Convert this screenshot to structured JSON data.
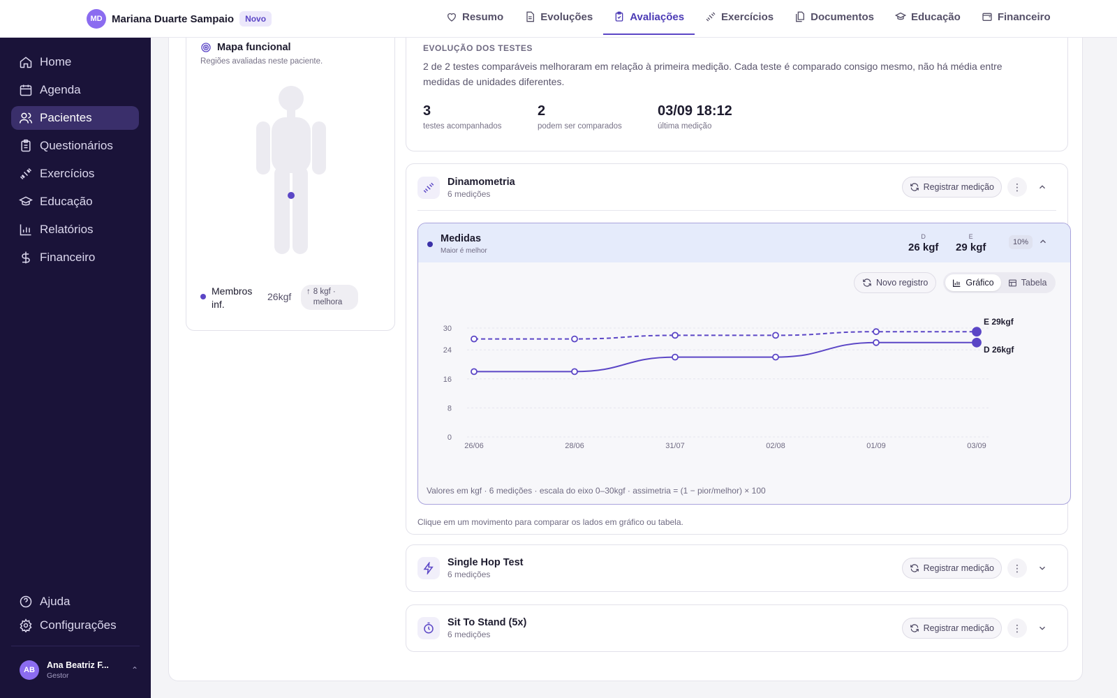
{
  "sidebar": {
    "items": [
      {
        "label": "Home",
        "icon": "home-icon"
      },
      {
        "label": "Agenda",
        "icon": "calendar-icon"
      },
      {
        "label": "Pacientes",
        "icon": "users-icon"
      },
      {
        "label": "Questionários",
        "icon": "clipboard-icon"
      },
      {
        "label": "Exercícios",
        "icon": "dumbbell-icon"
      },
      {
        "label": "Educação",
        "icon": "graduation-cap-icon"
      },
      {
        "label": "Relatórios",
        "icon": "bar-chart-icon"
      },
      {
        "label": "Financeiro",
        "icon": "dollar-icon"
      }
    ],
    "active": "Pacientes",
    "bottom": [
      {
        "label": "Ajuda",
        "icon": "help-circle-icon"
      },
      {
        "label": "Configurações",
        "icon": "gear-icon"
      }
    ],
    "user": {
      "initials": "AB",
      "name": "Ana Beatriz F...",
      "role": "Gestor"
    }
  },
  "header": {
    "patient_initials": "MD",
    "patient_name": "Mariana Duarte Sampaio",
    "badge": "Novo",
    "tabs": [
      {
        "label": "Resumo",
        "icon": "heart-icon"
      },
      {
        "label": "Evoluções",
        "icon": "file-text-icon"
      },
      {
        "label": "Avaliações",
        "icon": "clipboard-check-icon"
      },
      {
        "label": "Exercícios",
        "icon": "dumbbell-icon"
      },
      {
        "label": "Documentos",
        "icon": "files-icon"
      },
      {
        "label": "Educação",
        "icon": "graduation-cap-icon"
      },
      {
        "label": "Financeiro",
        "icon": "wallet-icon"
      }
    ],
    "active_tab": "Avaliações"
  },
  "map": {
    "title": "Mapa funcional",
    "subtitle": "Regiões avaliadas neste paciente.",
    "region": {
      "name": "Membros inf.",
      "value": "26kgf",
      "change": "8 kgf · melhora"
    }
  },
  "evolution": {
    "label": "EVOLUÇÃO DOS TESTES",
    "text": "2 de 2 testes comparáveis melhoraram em relação à primeira medição. Cada teste é comparado consigo mesmo, não há média entre medidas de unidades diferentes.",
    "stats": [
      {
        "value": "3",
        "label": "testes acompanhados"
      },
      {
        "value": "2",
        "label": "podem ser comparados"
      },
      {
        "value": "03/09 18:12",
        "label": "última medição"
      }
    ]
  },
  "tests": [
    {
      "name": "Dinamometria",
      "count": "6 medições",
      "icon": "dumbbell-icon"
    },
    {
      "name": "Single Hop Test",
      "count": "6 medições",
      "icon": "zap-icon"
    },
    {
      "name": "Sit To Stand (5x)",
      "count": "6 medições",
      "icon": "timer-icon"
    }
  ],
  "actions": {
    "register": "Registrar medição"
  },
  "medidas": {
    "name": "Medidas",
    "subtitle": "Maior é melhor",
    "right_key": "D",
    "right_value": "26 kgf",
    "left_key": "E",
    "left_value": "29 kgf",
    "asymmetry": "10%",
    "new_record": "Novo registro",
    "view_chart": "Gráfico",
    "view_table": "Tabela",
    "footer": "Valores em kgf · 6 medições · escala do eixo 0–30kgf · assimetria = (1 − pior/melhor) × 100"
  },
  "hint": "Clique em um movimento para comparar os lados em gráfico ou tabela.",
  "chart_data": {
    "type": "line",
    "categories": [
      "26/06",
      "28/06",
      "31/07",
      "02/08",
      "01/09",
      "03/09"
    ],
    "yticks": [
      0,
      8,
      16,
      24,
      30
    ],
    "ylim": [
      0,
      30
    ],
    "series": [
      {
        "name": "E",
        "end_label": "E 29kgf",
        "style": "dashed",
        "values": [
          27,
          27,
          28,
          28,
          29,
          29
        ]
      },
      {
        "name": "D",
        "end_label": "D 26kgf",
        "style": "solid",
        "values": [
          18,
          18,
          22,
          22,
          26,
          26
        ]
      }
    ],
    "grid": true,
    "colors": {
      "line": "#5b46c6"
    }
  }
}
